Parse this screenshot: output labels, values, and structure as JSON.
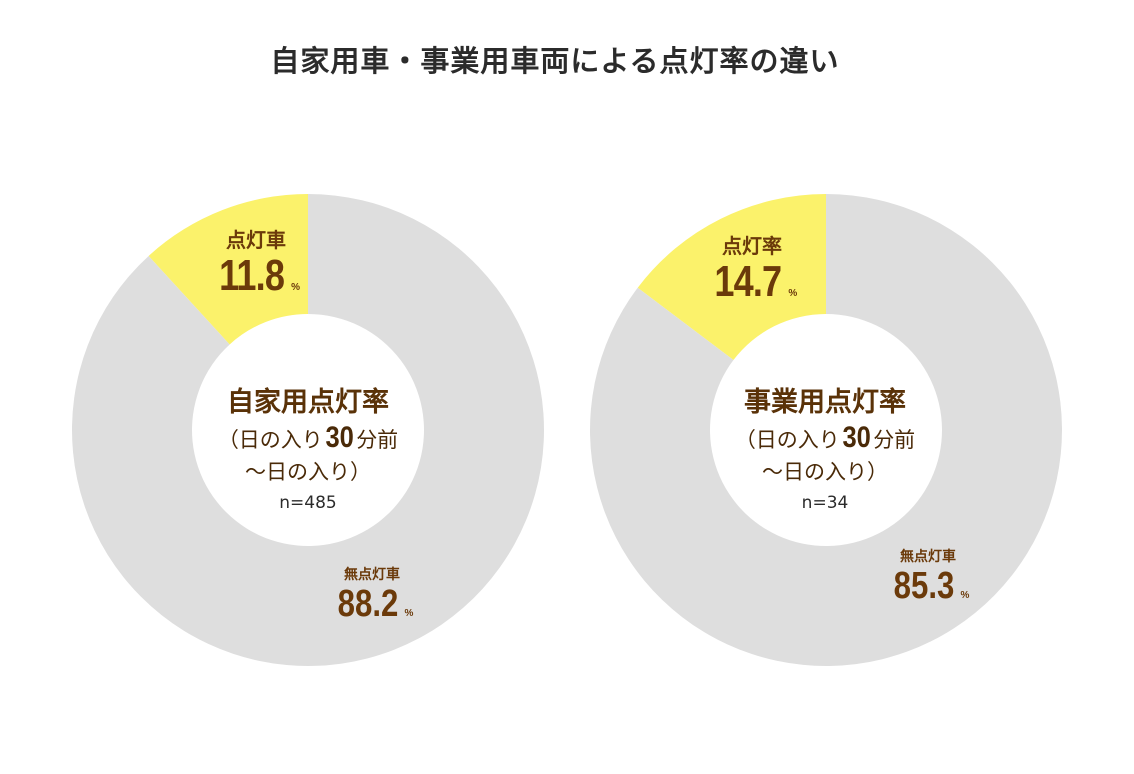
{
  "title": "自家用車・事業用車両による点灯率の違い",
  "colors": {
    "lit": "#fbf26b",
    "unlit": "#dedede",
    "label": "#6b3a0a"
  },
  "chart_data": [
    {
      "type": "pie",
      "center_title": "自家用点灯率",
      "center_sub_open": "（日の入り",
      "center_sub_big": "30",
      "center_sub_close": "分前",
      "center_sub_line2": "〜日の入り）",
      "n_label": "n=485",
      "slices": [
        {
          "label": "点灯車",
          "value": 11.8,
          "display": "11.8",
          "unit": "%",
          "color": "#fbf26b"
        },
        {
          "label": "無点灯車",
          "value": 88.2,
          "display": "88.2",
          "unit": "%",
          "color": "#dedede"
        }
      ]
    },
    {
      "type": "pie",
      "center_title": "事業用点灯率",
      "center_sub_open": "（日の入り",
      "center_sub_big": "30",
      "center_sub_close": "分前",
      "center_sub_line2": "〜日の入り）",
      "n_label": "n=34",
      "slices": [
        {
          "label": "点灯率",
          "value": 14.7,
          "display": "14.7",
          "unit": "%",
          "color": "#fbf26b"
        },
        {
          "label": "無点灯車",
          "value": 85.3,
          "display": "85.3",
          "unit": "%",
          "color": "#dedede"
        }
      ]
    }
  ]
}
